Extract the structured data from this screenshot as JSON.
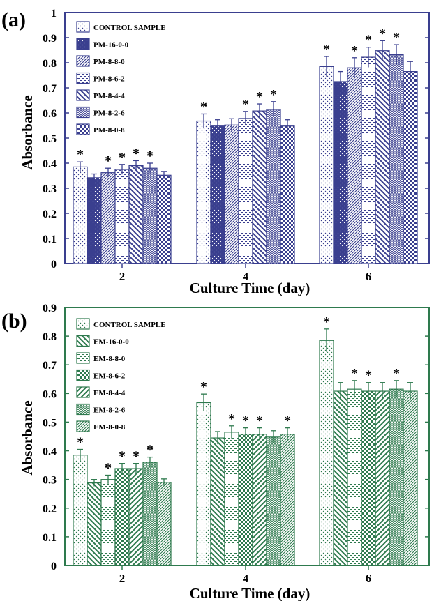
{
  "chart_data": [
    {
      "panel": "(a)",
      "type": "bar",
      "title": "",
      "xlabel": "Culture Time (day)",
      "ylabel": "Absorbance",
      "ylim": [
        0,
        1
      ],
      "yticks": [
        "0",
        "0.1",
        "0.2",
        "0.3",
        "0.4",
        "0.5",
        "0.6",
        "0.7",
        "0.8",
        "0.9",
        "1"
      ],
      "categories": [
        "2",
        "4",
        "6"
      ],
      "color": "#3a3f8f",
      "legend_placement": "top-left",
      "significance_mark": "*",
      "series": [
        {
          "name": "CONTROL SAMPLE",
          "pattern": "dots",
          "values": [
            0.385,
            0.568,
            0.785
          ],
          "errors": [
            0.02,
            0.028,
            0.04
          ],
          "starred": [
            true,
            true,
            true
          ]
        },
        {
          "name": "PM-16-0-0",
          "pattern": "solid-dots",
          "values": [
            0.342,
            0.548,
            0.725
          ],
          "errors": [
            0.015,
            0.025,
            0.04
          ],
          "starred": [
            false,
            false,
            false
          ]
        },
        {
          "name": "PM-8-8-0",
          "pattern": "diag-dense",
          "values": [
            0.362,
            0.552,
            0.78
          ],
          "errors": [
            0.018,
            0.025,
            0.04
          ],
          "starred": [
            true,
            false,
            true
          ]
        },
        {
          "name": "PM-8-6-2",
          "pattern": "dashes",
          "values": [
            0.375,
            0.578,
            0.822
          ],
          "errors": [
            0.02,
            0.028,
            0.04
          ],
          "starred": [
            true,
            true,
            true
          ]
        },
        {
          "name": "PM-8-4-4",
          "pattern": "diag-wide",
          "values": [
            0.39,
            0.608,
            0.848
          ],
          "errors": [
            0.02,
            0.028,
            0.04
          ],
          "starred": [
            true,
            true,
            true
          ]
        },
        {
          "name": "PM-8-2-6",
          "pattern": "zigzag",
          "values": [
            0.38,
            0.615,
            0.832
          ],
          "errors": [
            0.02,
            0.03,
            0.04
          ],
          "starred": [
            true,
            true,
            true
          ]
        },
        {
          "name": "PM-8-0-8",
          "pattern": "checker",
          "values": [
            0.352,
            0.548,
            0.765
          ],
          "errors": [
            0.015,
            0.025,
            0.04
          ],
          "starred": [
            false,
            false,
            false
          ]
        }
      ]
    },
    {
      "panel": "(b)",
      "type": "bar",
      "title": "",
      "xlabel": "Culture Time (day)",
      "ylabel": "Absorbance",
      "ylim": [
        0,
        0.9
      ],
      "yticks": [
        "0",
        "0.1",
        "0.2",
        "0.3",
        "0.4",
        "0.5",
        "0.6",
        "0.7",
        "0.8",
        "0.9"
      ],
      "categories": [
        "2",
        "4",
        "6"
      ],
      "color": "#2e7a4e",
      "legend_placement": "top-left",
      "significance_mark": "*",
      "series": [
        {
          "name": "CONTROL SAMPLE",
          "pattern": "dots",
          "values": [
            0.385,
            0.568,
            0.785
          ],
          "errors": [
            0.02,
            0.03,
            0.04
          ],
          "starred": [
            true,
            true,
            true
          ]
        },
        {
          "name": "EM-16-0-0",
          "pattern": "diag-wide",
          "values": [
            0.288,
            0.445,
            0.608
          ],
          "errors": [
            0.012,
            0.022,
            0.03
          ],
          "starred": [
            false,
            false,
            false
          ]
        },
        {
          "name": "EM-8-8-0",
          "pattern": "dashes",
          "values": [
            0.3,
            0.465,
            0.615
          ],
          "errors": [
            0.015,
            0.022,
            0.03
          ],
          "starred": [
            true,
            true,
            true
          ]
        },
        {
          "name": "EM-8-6-2",
          "pattern": "checker",
          "values": [
            0.338,
            0.458,
            0.608
          ],
          "errors": [
            0.018,
            0.022,
            0.03
          ],
          "starred": [
            true,
            true,
            true
          ]
        },
        {
          "name": "EM-8-4-4",
          "pattern": "diag-rev",
          "values": [
            0.338,
            0.458,
            0.608
          ],
          "errors": [
            0.018,
            0.022,
            0.03
          ],
          "starred": [
            true,
            true,
            false
          ]
        },
        {
          "name": "EM-8-2-6",
          "pattern": "zigzag",
          "values": [
            0.36,
            0.448,
            0.615
          ],
          "errors": [
            0.018,
            0.022,
            0.03
          ],
          "starred": [
            true,
            false,
            true
          ]
        },
        {
          "name": "EM-8-0-8",
          "pattern": "diag-dense",
          "values": [
            0.29,
            0.458,
            0.608
          ],
          "errors": [
            0.012,
            0.022,
            0.03
          ],
          "starred": [
            false,
            true,
            false
          ]
        }
      ]
    }
  ]
}
